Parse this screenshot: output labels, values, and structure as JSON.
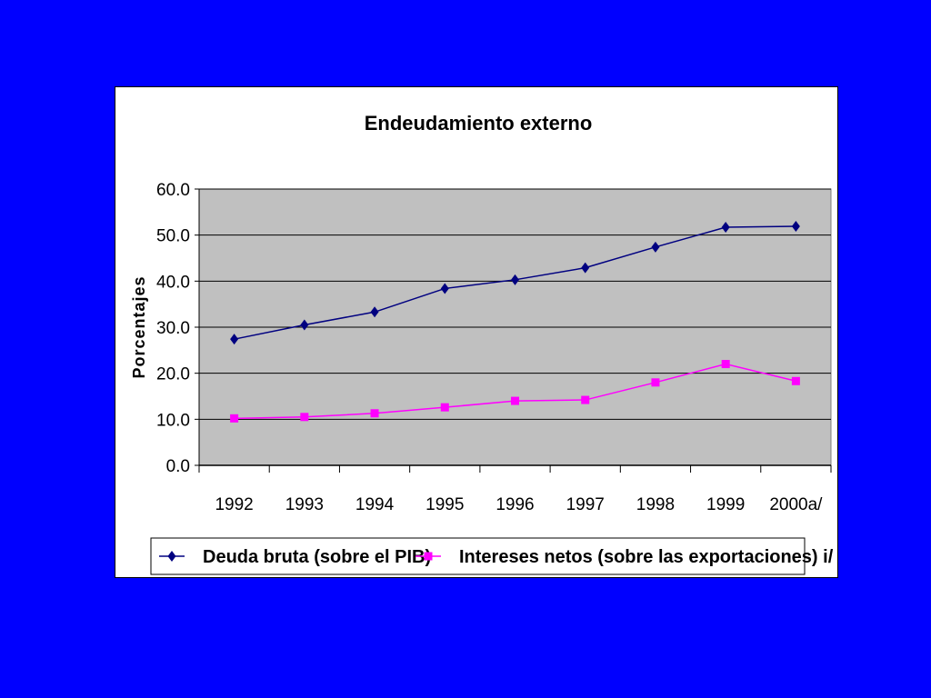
{
  "background_color": "#0000FF",
  "chart_data": {
    "type": "line",
    "title": "Endeudamiento externo",
    "xlabel": "",
    "ylabel": "Porcentajes",
    "categories": [
      "1992",
      "1993",
      "1994",
      "1995",
      "1996",
      "1997",
      "1998",
      "1999",
      "2000a/"
    ],
    "ylim": [
      0,
      60
    ],
    "yticks": [
      "0.0",
      "10.0",
      "20.0",
      "30.0",
      "40.0",
      "50.0",
      "60.0"
    ],
    "grid": true,
    "legend_position": "bottom",
    "plot_background": "#C0C0C0",
    "series": [
      {
        "name": "Deuda bruta (sobre el PIB)",
        "color": "#000080",
        "marker": "diamond",
        "values": [
          27.4,
          30.5,
          33.3,
          38.4,
          40.3,
          42.9,
          47.4,
          51.7,
          51.9
        ]
      },
      {
        "name": "Intereses netos (sobre las exportaciones) i/",
        "color": "#FF00FF",
        "marker": "square",
        "values": [
          10.2,
          10.5,
          11.3,
          12.6,
          14.0,
          14.2,
          18.0,
          22.0,
          18.3
        ]
      }
    ]
  }
}
